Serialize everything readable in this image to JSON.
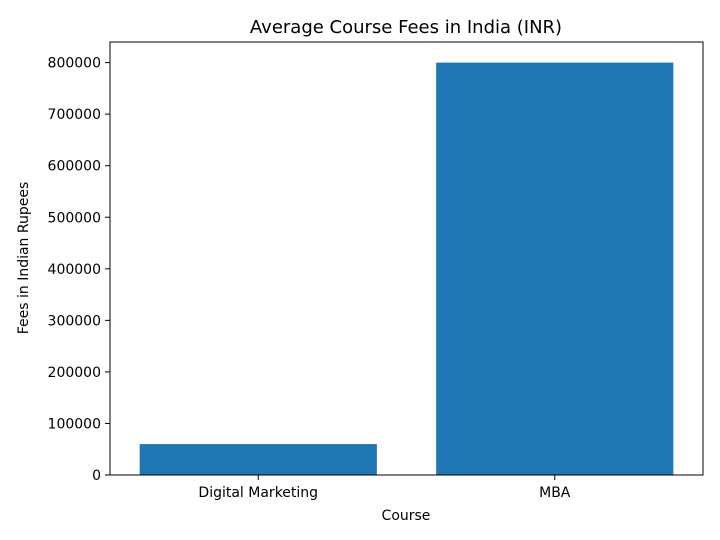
{
  "chart_data": {
    "type": "bar",
    "title": "Average Course Fees in India (INR)",
    "xlabel": "Course",
    "ylabel": "Fees in Indian Rupees",
    "categories": [
      "Digital Marketing",
      "MBA"
    ],
    "values": [
      60000,
      800000
    ],
    "ylim": [
      0,
      840000
    ],
    "yticks": [
      0,
      100000,
      200000,
      300000,
      400000,
      500000,
      600000,
      700000,
      800000
    ],
    "ytick_labels": [
      "0",
      "100000",
      "200000",
      "300000",
      "400000",
      "500000",
      "600000",
      "700000",
      "800000"
    ],
    "bar_color": "#1f77b4",
    "grid": false,
    "legend": "none"
  }
}
